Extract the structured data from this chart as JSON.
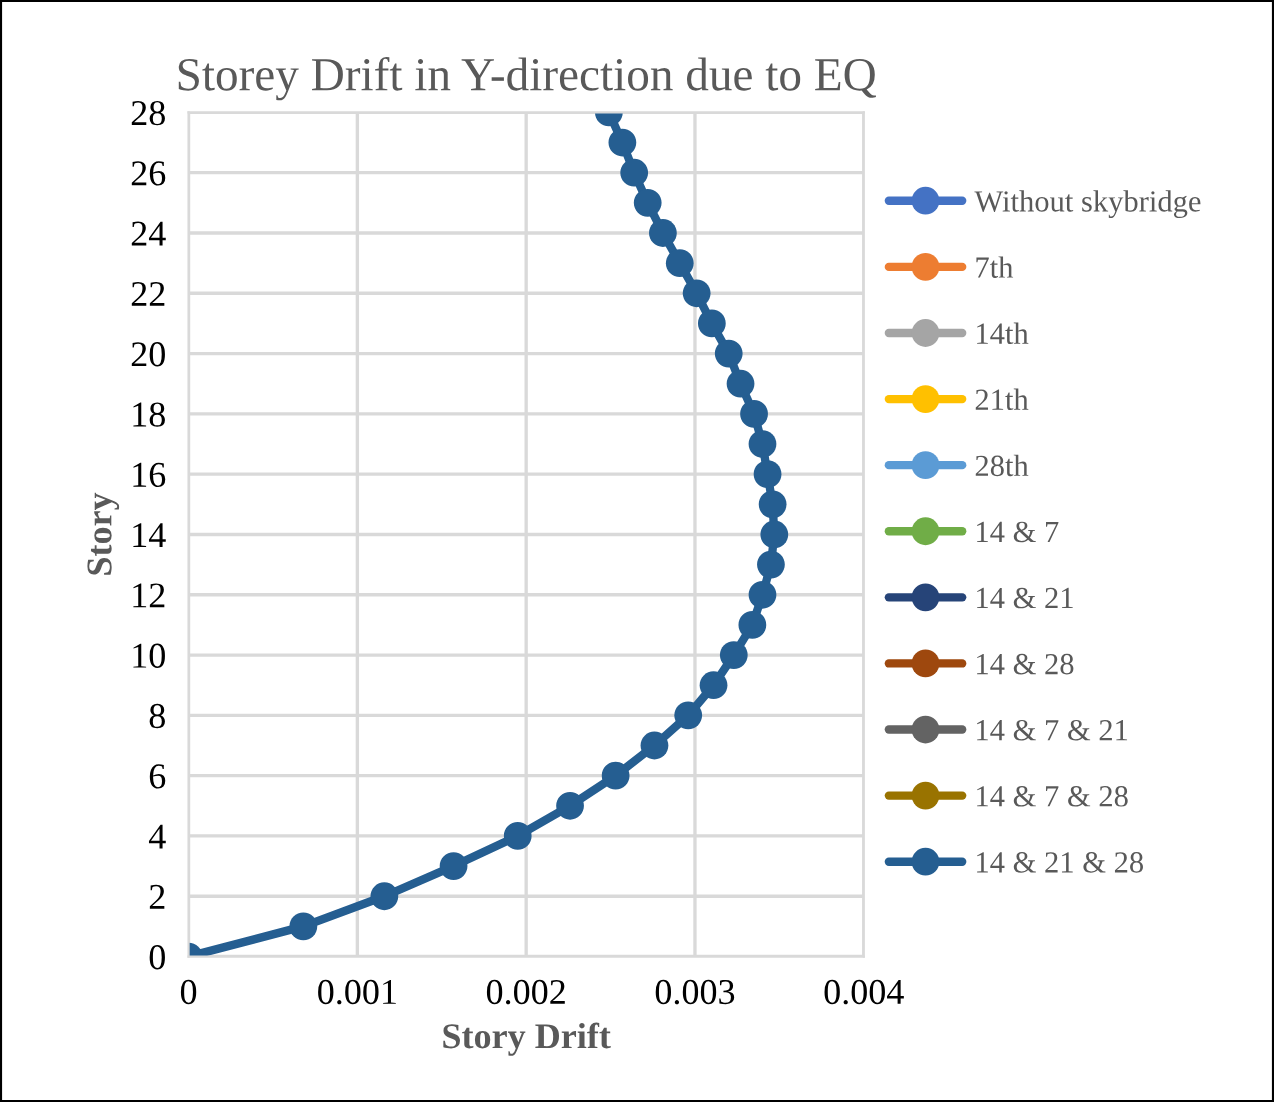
{
  "chart_data": {
    "type": "line",
    "title": "Storey Drift in Y-direction due to EQ",
    "xlabel": "Story Drift",
    "ylabel": "Story",
    "xlim": [
      0,
      0.004
    ],
    "xticks": [
      0,
      0.001,
      0.002,
      0.003,
      0.004
    ],
    "ylim": [
      0,
      28
    ],
    "yticks": [
      0,
      2,
      4,
      6,
      8,
      10,
      12,
      14,
      16,
      18,
      20,
      22,
      24,
      26,
      28
    ],
    "grid": true,
    "legend": "right",
    "marker": "circle",
    "line_style": "solid",
    "x": [
      0,
      0.00068,
      0.00116,
      0.00157,
      0.00195,
      0.00226,
      0.00253,
      0.00276,
      0.00296,
      0.00311,
      0.00323,
      0.00334,
      0.0034,
      0.00345,
      0.00347,
      0.00346,
      0.00343,
      0.0034,
      0.00335,
      0.00327,
      0.0032,
      0.0031,
      0.00301,
      0.00291,
      0.00281,
      0.00272,
      0.00264,
      0.00257,
      0.00249
    ],
    "series": [
      {
        "name": "Without skybridge",
        "color": "#4472c4",
        "values": [
          null,
          null,
          null,
          null,
          null,
          null,
          null,
          null,
          null,
          null,
          null,
          null,
          null,
          null,
          null,
          null,
          null,
          null,
          null,
          null,
          null,
          null,
          null,
          null,
          null,
          null,
          null,
          null,
          null
        ]
      },
      {
        "name": "7th",
        "color": "#ed7d31",
        "values": [
          null,
          null,
          null,
          null,
          null,
          null,
          null,
          null,
          null,
          null,
          null,
          null,
          null,
          null,
          null,
          null,
          null,
          null,
          null,
          null,
          null,
          null,
          null,
          null,
          null,
          null,
          null,
          null,
          null
        ]
      },
      {
        "name": "14th",
        "color": "#a5a5a5",
        "values": [
          null,
          null,
          null,
          null,
          null,
          null,
          null,
          null,
          null,
          null,
          null,
          null,
          null,
          null,
          null,
          null,
          null,
          null,
          null,
          null,
          null,
          null,
          null,
          null,
          null,
          null,
          null,
          null,
          null
        ]
      },
      {
        "name": "21th",
        "color": "#ffc000",
        "values": [
          null,
          null,
          null,
          null,
          null,
          null,
          null,
          null,
          null,
          null,
          null,
          null,
          null,
          null,
          null,
          null,
          null,
          null,
          null,
          null,
          null,
          null,
          null,
          null,
          null,
          null,
          null,
          null,
          null
        ]
      },
      {
        "name": "28th",
        "color": "#5b9bd5",
        "values": [
          null,
          null,
          null,
          null,
          null,
          null,
          null,
          null,
          null,
          null,
          null,
          null,
          null,
          null,
          null,
          null,
          null,
          null,
          null,
          null,
          null,
          null,
          null,
          null,
          null,
          null,
          null,
          null,
          null
        ]
      },
      {
        "name": "14 & 7",
        "color": "#70ad47",
        "values": [
          null,
          null,
          null,
          null,
          null,
          null,
          null,
          null,
          null,
          null,
          null,
          null,
          null,
          null,
          null,
          null,
          null,
          null,
          null,
          null,
          null,
          null,
          null,
          null,
          null,
          null,
          null,
          null,
          null
        ]
      },
      {
        "name": "14 & 21",
        "color": "#264478",
        "values": [
          null,
          null,
          null,
          null,
          null,
          null,
          null,
          null,
          null,
          null,
          null,
          null,
          null,
          null,
          null,
          null,
          null,
          null,
          null,
          null,
          null,
          null,
          null,
          null,
          null,
          null,
          null,
          null,
          null
        ]
      },
      {
        "name": "14 & 28",
        "color": "#9e480e",
        "values": [
          null,
          null,
          null,
          null,
          null,
          null,
          null,
          null,
          null,
          null,
          null,
          null,
          null,
          null,
          null,
          null,
          null,
          null,
          null,
          null,
          null,
          null,
          null,
          null,
          null,
          null,
          null,
          null,
          null
        ]
      },
      {
        "name": "14 & 7 & 21",
        "color": "#636363",
        "values": [
          null,
          null,
          null,
          null,
          null,
          null,
          null,
          null,
          null,
          null,
          null,
          null,
          null,
          null,
          null,
          null,
          null,
          null,
          null,
          null,
          null,
          null,
          null,
          null,
          null,
          null,
          null,
          null,
          null
        ]
      },
      {
        "name": "14 & 7 & 28",
        "color": "#997300",
        "values": [
          null,
          null,
          null,
          null,
          null,
          null,
          null,
          null,
          null,
          null,
          null,
          null,
          null,
          null,
          null,
          null,
          null,
          null,
          null,
          null,
          null,
          null,
          null,
          null,
          null,
          null,
          null,
          null,
          null
        ]
      },
      {
        "name": "14 & 21 & 28",
        "color": "#255e91",
        "values": [
          0,
          1,
          2,
          3,
          4,
          5,
          6,
          7,
          8,
          9,
          10,
          11,
          12,
          13,
          14,
          15,
          16,
          17,
          18,
          19,
          20,
          21,
          22,
          23,
          24,
          25,
          26,
          27,
          28
        ]
      }
    ]
  }
}
